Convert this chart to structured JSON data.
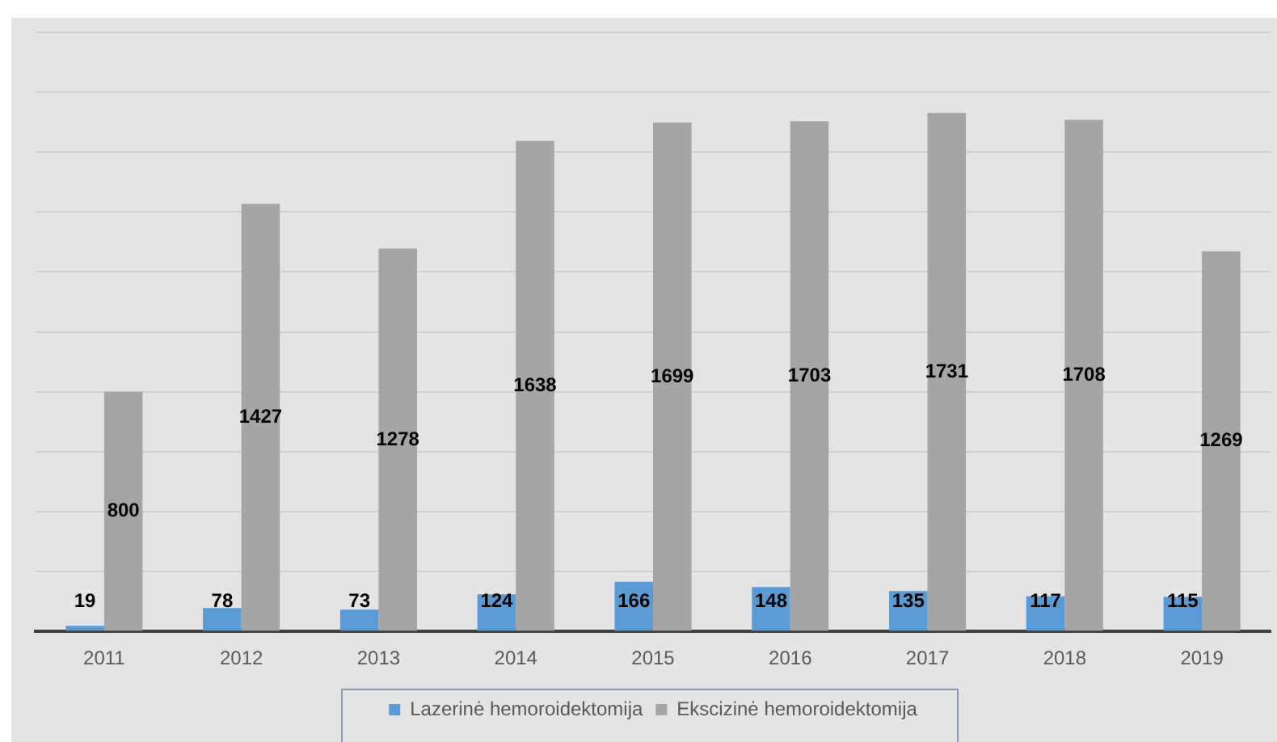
{
  "chart_data": {
    "type": "bar",
    "categories": [
      "2011",
      "2012",
      "2013",
      "2014",
      "2015",
      "2016",
      "2017",
      "2018",
      "2019"
    ],
    "series": [
      {
        "name": "Lazerinė hemoroidektomija",
        "color": "#5b9bd5",
        "values": [
          19,
          78,
          73,
          124,
          166,
          148,
          135,
          117,
          115
        ]
      },
      {
        "name": "Ekscizinė hemoroidektomija",
        "color": "#a5a5a5",
        "values": [
          800,
          1427,
          1278,
          1638,
          1699,
          1703,
          1731,
          1708,
          1269
        ]
      }
    ],
    "ylim": [
      0,
      2000
    ],
    "yticks": [
      {
        "value": 0,
        "label": null
      },
      {
        "value": 200,
        "label": null
      },
      {
        "value": 400,
        "label": null
      },
      {
        "value": 600,
        "label": null
      },
      {
        "value": 800,
        "label": null
      },
      {
        "value": 1000,
        "label": null
      },
      {
        "value": 1200,
        "label": null
      },
      {
        "value": 1400,
        "label": null
      },
      {
        "value": 1600,
        "label": null
      },
      {
        "value": 1800,
        "label": null
      },
      {
        "value": 2000,
        "label": null
      }
    ],
    "grid": "y",
    "legend": "bottom",
    "tick_labels": "x",
    "data_labels": true
  }
}
